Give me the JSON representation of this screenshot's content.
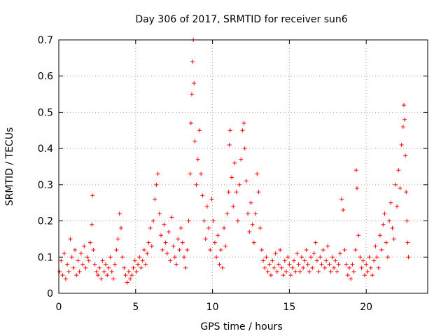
{
  "chart_data": {
    "type": "scatter",
    "title": "Day 306 of 2017, SRMTID for receiver sun6",
    "xlabel": "GPS time / hours",
    "ylabel": "SRMTID / TECUs",
    "xlim": [
      0,
      24
    ],
    "ylim": [
      0,
      0.7
    ],
    "xticks": [
      0,
      5,
      10,
      15,
      20
    ],
    "xtick_labels": [
      "0",
      "5",
      "10",
      "15",
      "20"
    ],
    "yticks": [
      0,
      0.1,
      0.2,
      0.3,
      0.4,
      0.5,
      0.6,
      0.7
    ],
    "ytick_labels": [
      "0",
      "0.1",
      "0.2",
      "0.3",
      "0.4",
      "0.5",
      "0.6",
      "0.7"
    ],
    "grid": true,
    "marker": "+",
    "marker_color": "#ff0000",
    "series": [
      {
        "name": "sun6",
        "points": [
          [
            0.05,
            0.06
          ],
          [
            0.15,
            0.09
          ],
          [
            0.25,
            0.05
          ],
          [
            0.35,
            0.11
          ],
          [
            0.45,
            0.04
          ],
          [
            0.55,
            0.08
          ],
          [
            0.65,
            0.06
          ],
          [
            0.75,
            0.15
          ],
          [
            0.85,
            0.1
          ],
          [
            0.95,
            0.07
          ],
          [
            1.05,
            0.12
          ],
          [
            1.15,
            0.05
          ],
          [
            1.25,
            0.09
          ],
          [
            1.35,
            0.06
          ],
          [
            1.45,
            0.11
          ],
          [
            1.55,
            0.08
          ],
          [
            1.65,
            0.13
          ],
          [
            1.75,
            0.07
          ],
          [
            1.85,
            0.1
          ],
          [
            1.95,
            0.09
          ],
          [
            2.05,
            0.14
          ],
          [
            2.15,
            0.19
          ],
          [
            2.2,
            0.27
          ],
          [
            2.25,
            0.12
          ],
          [
            2.35,
            0.08
          ],
          [
            2.45,
            0.06
          ],
          [
            2.55,
            0.05
          ],
          [
            2.65,
            0.07
          ],
          [
            2.75,
            0.04
          ],
          [
            2.85,
            0.09
          ],
          [
            2.95,
            0.06
          ],
          [
            3.05,
            0.08
          ],
          [
            3.15,
            0.05
          ],
          [
            3.25,
            0.07
          ],
          [
            3.35,
            0.1
          ],
          [
            3.45,
            0.06
          ],
          [
            3.55,
            0.04
          ],
          [
            3.65,
            0.08
          ],
          [
            3.75,
            0.12
          ],
          [
            3.85,
            0.15
          ],
          [
            3.95,
            0.22
          ],
          [
            4.05,
            0.18
          ],
          [
            4.15,
            0.1
          ],
          [
            4.25,
            0.07
          ],
          [
            4.35,
            0.05
          ],
          [
            4.45,
            0.03
          ],
          [
            4.55,
            0.06
          ],
          [
            4.65,
            0.04
          ],
          [
            4.75,
            0.05
          ],
          [
            4.85,
            0.07
          ],
          [
            4.95,
            0.09
          ],
          [
            5.05,
            0.06
          ],
          [
            5.15,
            0.08
          ],
          [
            5.25,
            0.1
          ],
          [
            5.35,
            0.07
          ],
          [
            5.45,
            0.09
          ],
          [
            5.55,
            0.12
          ],
          [
            5.65,
            0.08
          ],
          [
            5.75,
            0.11
          ],
          [
            5.85,
            0.14
          ],
          [
            5.95,
            0.18
          ],
          [
            6.05,
            0.13
          ],
          [
            6.15,
            0.2
          ],
          [
            6.25,
            0.26
          ],
          [
            6.35,
            0.3
          ],
          [
            6.45,
            0.33
          ],
          [
            6.55,
            0.22
          ],
          [
            6.65,
            0.16
          ],
          [
            6.75,
            0.12
          ],
          [
            6.85,
            0.19
          ],
          [
            6.95,
            0.14
          ],
          [
            7.05,
            0.11
          ],
          [
            7.15,
            0.17
          ],
          [
            7.25,
            0.09
          ],
          [
            7.35,
            0.21
          ],
          [
            7.45,
            0.13
          ],
          [
            7.55,
            0.1
          ],
          [
            7.65,
            0.08
          ],
          [
            7.75,
            0.15
          ],
          [
            7.85,
            0.12
          ],
          [
            7.95,
            0.18
          ],
          [
            8.05,
            0.14
          ],
          [
            8.15,
            0.1
          ],
          [
            8.25,
            0.07
          ],
          [
            8.35,
            0.12
          ],
          [
            8.45,
            0.2
          ],
          [
            8.55,
            0.33
          ],
          [
            8.6,
            0.47
          ],
          [
            8.65,
            0.55
          ],
          [
            8.7,
            0.64
          ],
          [
            8.75,
            0.7
          ],
          [
            8.8,
            0.58
          ],
          [
            8.85,
            0.42
          ],
          [
            8.95,
            0.3
          ],
          [
            9.05,
            0.37
          ],
          [
            9.15,
            0.45
          ],
          [
            9.25,
            0.33
          ],
          [
            9.35,
            0.27
          ],
          [
            9.45,
            0.2
          ],
          [
            9.55,
            0.15
          ],
          [
            9.65,
            0.24
          ],
          [
            9.75,
            0.18
          ],
          [
            9.85,
            0.12
          ],
          [
            9.95,
            0.26
          ],
          [
            10.05,
            0.2
          ],
          [
            10.15,
            0.14
          ],
          [
            10.25,
            0.1
          ],
          [
            10.35,
            0.16
          ],
          [
            10.45,
            0.08
          ],
          [
            10.55,
            0.12
          ],
          [
            10.65,
            0.07
          ],
          [
            10.75,
            0.18
          ],
          [
            10.85,
            0.13
          ],
          [
            10.95,
            0.22
          ],
          [
            11.05,
            0.28
          ],
          [
            11.1,
            0.41
          ],
          [
            11.15,
            0.45
          ],
          [
            11.25,
            0.32
          ],
          [
            11.35,
            0.24
          ],
          [
            11.45,
            0.36
          ],
          [
            11.55,
            0.28
          ],
          [
            11.65,
            0.2
          ],
          [
            11.75,
            0.3
          ],
          [
            11.85,
            0.37
          ],
          [
            11.95,
            0.45
          ],
          [
            12.05,
            0.47
          ],
          [
            12.1,
            0.4
          ],
          [
            12.2,
            0.31
          ],
          [
            12.3,
            0.22
          ],
          [
            12.4,
            0.17
          ],
          [
            12.5,
            0.25
          ],
          [
            12.6,
            0.19
          ],
          [
            12.7,
            0.14
          ],
          [
            12.8,
            0.22
          ],
          [
            12.9,
            0.33
          ],
          [
            13.0,
            0.28
          ],
          [
            13.1,
            0.18
          ],
          [
            13.2,
            0.12
          ],
          [
            13.3,
            0.09
          ],
          [
            13.4,
            0.07
          ],
          [
            13.5,
            0.1
          ],
          [
            13.6,
            0.06
          ],
          [
            13.7,
            0.08
          ],
          [
            13.8,
            0.05
          ],
          [
            13.9,
            0.09
          ],
          [
            14.0,
            0.07
          ],
          [
            14.1,
            0.11
          ],
          [
            14.2,
            0.06
          ],
          [
            14.3,
            0.08
          ],
          [
            14.4,
            0.12
          ],
          [
            14.5,
            0.07
          ],
          [
            14.6,
            0.05
          ],
          [
            14.7,
            0.09
          ],
          [
            14.8,
            0.06
          ],
          [
            14.9,
            0.1
          ],
          [
            15.0,
            0.08
          ],
          [
            15.1,
            0.05
          ],
          [
            15.2,
            0.07
          ],
          [
            15.3,
            0.09
          ],
          [
            15.4,
            0.06
          ],
          [
            15.5,
            0.11
          ],
          [
            15.6,
            0.08
          ],
          [
            15.7,
            0.06
          ],
          [
            15.8,
            0.1
          ],
          [
            15.9,
            0.07
          ],
          [
            16.0,
            0.09
          ],
          [
            16.1,
            0.12
          ],
          [
            16.2,
            0.08
          ],
          [
            16.3,
            0.06
          ],
          [
            16.4,
            0.1
          ],
          [
            16.5,
            0.07
          ],
          [
            16.6,
            0.11
          ],
          [
            16.7,
            0.14
          ],
          [
            16.8,
            0.09
          ],
          [
            16.9,
            0.06
          ],
          [
            17.0,
            0.1
          ],
          [
            17.1,
            0.08
          ],
          [
            17.2,
            0.12
          ],
          [
            17.3,
            0.07
          ],
          [
            17.4,
            0.09
          ],
          [
            17.5,
            0.13
          ],
          [
            17.6,
            0.08
          ],
          [
            17.7,
            0.06
          ],
          [
            17.8,
            0.1
          ],
          [
            17.9,
            0.07
          ],
          [
            18.0,
            0.09
          ],
          [
            18.1,
            0.06
          ],
          [
            18.2,
            0.08
          ],
          [
            18.3,
            0.11
          ],
          [
            18.4,
            0.26
          ],
          [
            18.5,
            0.23
          ],
          [
            18.6,
            0.12
          ],
          [
            18.7,
            0.08
          ],
          [
            18.8,
            0.05
          ],
          [
            18.9,
            0.07
          ],
          [
            19.0,
            0.04
          ],
          [
            19.1,
            0.08
          ],
          [
            19.2,
            0.06
          ],
          [
            19.3,
            0.12
          ],
          [
            19.35,
            0.34
          ],
          [
            19.4,
            0.29
          ],
          [
            19.5,
            0.16
          ],
          [
            19.6,
            0.1
          ],
          [
            19.7,
            0.07
          ],
          [
            19.8,
            0.09
          ],
          [
            19.9,
            0.05
          ],
          [
            20.0,
            0.08
          ],
          [
            20.1,
            0.06
          ],
          [
            20.2,
            0.1
          ],
          [
            20.3,
            0.07
          ],
          [
            20.4,
            0.05
          ],
          [
            20.5,
            0.09
          ],
          [
            20.6,
            0.13
          ],
          [
            20.7,
            0.1
          ],
          [
            20.8,
            0.07
          ],
          [
            20.9,
            0.16
          ],
          [
            21.0,
            0.12
          ],
          [
            21.1,
            0.19
          ],
          [
            21.2,
            0.22
          ],
          [
            21.3,
            0.14
          ],
          [
            21.4,
            0.1
          ],
          [
            21.5,
            0.2
          ],
          [
            21.6,
            0.25
          ],
          [
            21.7,
            0.18
          ],
          [
            21.8,
            0.15
          ],
          [
            21.9,
            0.3
          ],
          [
            22.0,
            0.24
          ],
          [
            22.1,
            0.34
          ],
          [
            22.2,
            0.29
          ],
          [
            22.3,
            0.41
          ],
          [
            22.4,
            0.46
          ],
          [
            22.45,
            0.52
          ],
          [
            22.5,
            0.48
          ],
          [
            22.55,
            0.38
          ],
          [
            22.6,
            0.28
          ],
          [
            22.65,
            0.2
          ],
          [
            22.7,
            0.14
          ],
          [
            22.75,
            0.1
          ]
        ]
      }
    ]
  }
}
